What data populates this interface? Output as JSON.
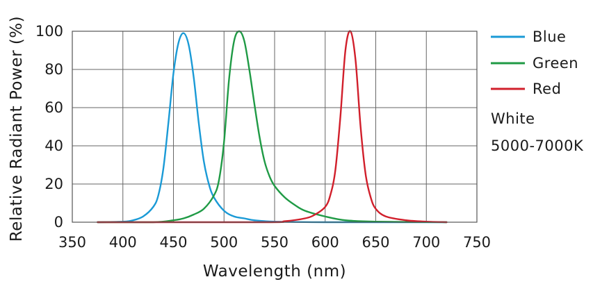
{
  "chart_data": {
    "type": "line",
    "xlabel": "Wavelength (nm)",
    "ylabel": "Relative Radiant Power (%)",
    "xlim": [
      350,
      750
    ],
    "ylim": [
      0,
      100
    ],
    "xticks": [
      "350",
      "400",
      "450",
      "500",
      "550",
      "600",
      "650",
      "700",
      "750"
    ],
    "yticks": [
      "0",
      "20",
      "40",
      "60",
      "80",
      "100"
    ],
    "grid": true,
    "legend_position": "right",
    "series": [
      {
        "name": "Blue",
        "color": "#1a9ad6",
        "x": [
          375,
          400,
          410,
          420,
          430,
          435,
          440,
          445,
          450,
          455,
          460,
          465,
          470,
          475,
          480,
          485,
          490,
          500,
          510,
          520,
          530,
          550,
          600,
          650,
          720
        ],
        "y": [
          0,
          0.3,
          1,
          3,
          8,
          14,
          28,
          52,
          78,
          94,
          99,
          93,
          76,
          52,
          32,
          20,
          13,
          6,
          3,
          2,
          1,
          0.3,
          0,
          0,
          0
        ]
      },
      {
        "name": "Green",
        "color": "#1f9a45",
        "x": [
          375,
          430,
          450,
          460,
          470,
          480,
          490,
          495,
          500,
          505,
          510,
          515,
          520,
          525,
          530,
          535,
          540,
          545,
          550,
          560,
          570,
          580,
          600,
          620,
          650,
          720
        ],
        "y": [
          0,
          0,
          1,
          2,
          4,
          7,
          14,
          22,
          42,
          75,
          95,
          100,
          95,
          80,
          62,
          45,
          32,
          24,
          19,
          13,
          9,
          6,
          3,
          1,
          0.3,
          0
        ]
      },
      {
        "name": "Red",
        "color": "#d11f2b",
        "x": [
          375,
          540,
          560,
          580,
          590,
          600,
          605,
          610,
          615,
          620,
          625,
          630,
          635,
          640,
          645,
          650,
          660,
          680,
          700,
          720
        ],
        "y": [
          0,
          0,
          0.5,
          2,
          4,
          8,
          14,
          27,
          55,
          90,
          100,
          85,
          50,
          25,
          13,
          7,
          3,
          1,
          0.3,
          0
        ]
      }
    ],
    "annotations": [
      "White",
      "5000-7000K"
    ]
  }
}
